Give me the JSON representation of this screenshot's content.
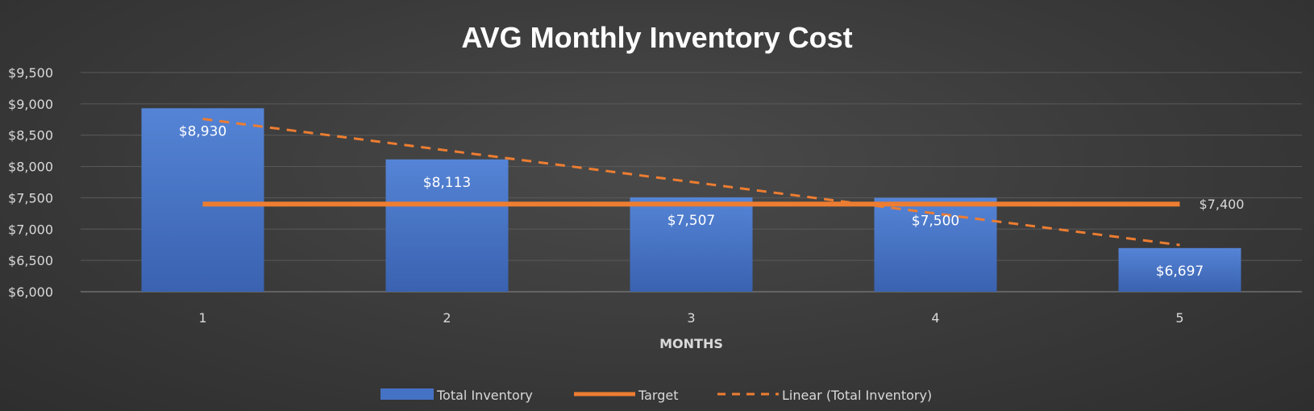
{
  "chart_data": {
    "type": "bar",
    "title": "AVG Monthly Inventory Cost",
    "xlabel": "MONTHS",
    "ylabel": "",
    "categories": [
      "1",
      "2",
      "3",
      "4",
      "5"
    ],
    "ylim": [
      6000,
      9500
    ],
    "yticks": [
      6000,
      6500,
      7000,
      7500,
      8000,
      8500,
      9000,
      9500
    ],
    "ytick_labels": [
      "$6,000",
      "$6,500",
      "$7,000",
      "$7,500",
      "$8,000",
      "$8,500",
      "$9,000",
      "$9,500"
    ],
    "grid": true,
    "legend_position": "bottom",
    "series": [
      {
        "name": "Total Inventory",
        "kind": "bar",
        "values": [
          8930,
          8113,
          7507,
          7500,
          6697
        ],
        "labels": [
          "$8,930",
          "$8,113",
          "$7,507",
          "$7,500",
          "$6,697"
        ],
        "color": "#4472c4"
      },
      {
        "name": "Target",
        "kind": "line",
        "values": [
          7400,
          7400,
          7400,
          7400,
          7400
        ],
        "end_label": "$7,400",
        "color": "#ed7d31"
      },
      {
        "name": "Linear (Total Inventory)",
        "kind": "trendline-dashed",
        "values": [
          8759,
          8256,
          7753,
          7249,
          6746
        ],
        "color": "#ed7d31"
      }
    ]
  }
}
